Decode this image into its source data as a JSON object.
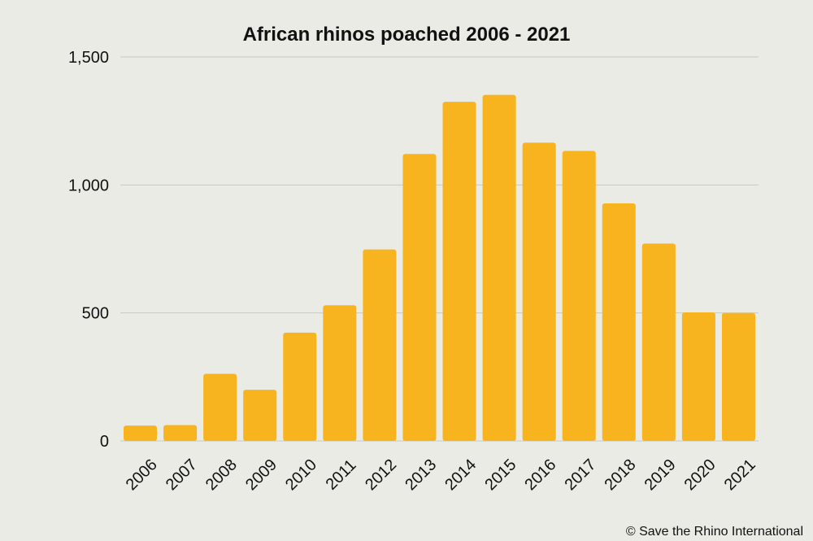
{
  "chart_data": {
    "type": "bar",
    "title": "African rhinos poached 2006 - 2021",
    "xlabel": "",
    "ylabel": "",
    "categories": [
      "2006",
      "2007",
      "2008",
      "2009",
      "2010",
      "2011",
      "2012",
      "2013",
      "2014",
      "2015",
      "2016",
      "2017",
      "2018",
      "2019",
      "2020",
      "2021"
    ],
    "values": [
      60,
      62,
      262,
      200,
      423,
      530,
      748,
      1121,
      1325,
      1352,
      1165,
      1133,
      928,
      771,
      502,
      500
    ],
    "ylim": [
      0,
      1500
    ],
    "yticks": [
      0,
      500,
      1000,
      1500
    ],
    "ytick_labels": [
      "0",
      "500",
      "1,000",
      "1,500"
    ],
    "grid": true,
    "legend": "none",
    "colors": {
      "bar": "#f7b41f",
      "background": "#ebebe6",
      "grid": "#c9c9c4"
    }
  },
  "footer": {
    "credit": "© Save the Rhino International"
  }
}
